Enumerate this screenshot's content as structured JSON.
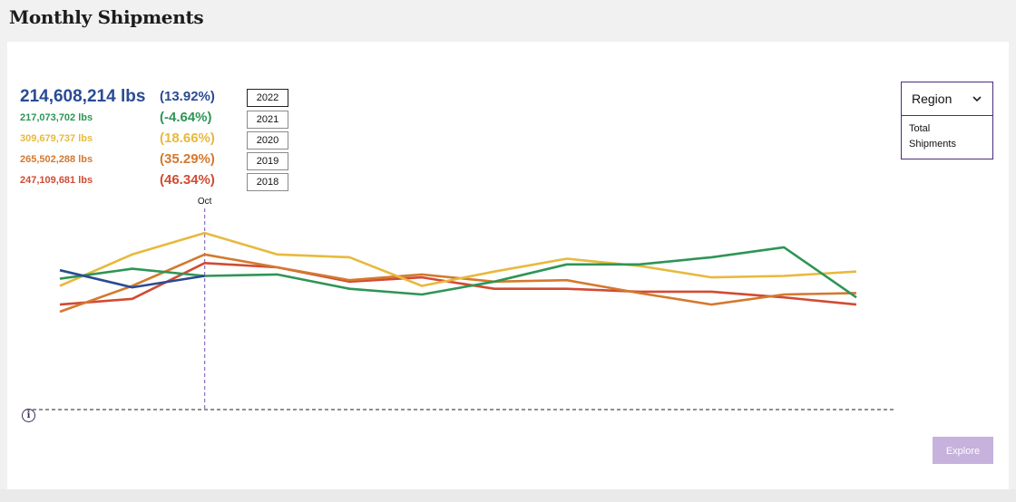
{
  "page": {
    "title": "Monthly Shipments"
  },
  "stats": [
    {
      "year": "2022",
      "value": "214,608,214 lbs",
      "change": "(13.92%)",
      "color": "#2a4b93"
    },
    {
      "year": "2021",
      "value": "217,073,702 lbs",
      "change": "(-4.64%)",
      "color": "#2e9556"
    },
    {
      "year": "2020",
      "value": "309,679,737 lbs",
      "change": "(18.66%)",
      "color": "#e8b93e"
    },
    {
      "year": "2019",
      "value": "265,502,288 lbs",
      "change": "(35.29%)",
      "color": "#d4792f"
    },
    {
      "year": "2018",
      "value": "247,109,681 lbs",
      "change": "(46.34%)",
      "color": "#d14b33"
    }
  ],
  "region": {
    "label": "Region",
    "option": "Total Shipments"
  },
  "explore_label": "Explore",
  "chart_data": {
    "type": "line",
    "hover_label": "Oct",
    "hover_index": 2,
    "ylim": [
      0,
      100
    ],
    "series": [
      {
        "name": "2022",
        "color": "#2a4b93",
        "values": [
          48,
          36,
          44
        ]
      },
      {
        "name": "2021",
        "color": "#2e9556",
        "values": [
          42,
          49,
          44,
          45,
          35,
          31,
          40,
          52,
          52,
          57,
          64,
          29
        ]
      },
      {
        "name": "2020",
        "color": "#e8b93e",
        "values": [
          37,
          59,
          74,
          59,
          57,
          37,
          47,
          56,
          51,
          43,
          44,
          47
        ]
      },
      {
        "name": "2019",
        "color": "#d4792f",
        "values": [
          19,
          37,
          59,
          50,
          41,
          45,
          40,
          41,
          32,
          24,
          31,
          32
        ]
      },
      {
        "name": "2018",
        "color": "#d14b33",
        "values": [
          24,
          28,
          53,
          50,
          40,
          43,
          35,
          35,
          33,
          33,
          29,
          24
        ]
      }
    ]
  }
}
